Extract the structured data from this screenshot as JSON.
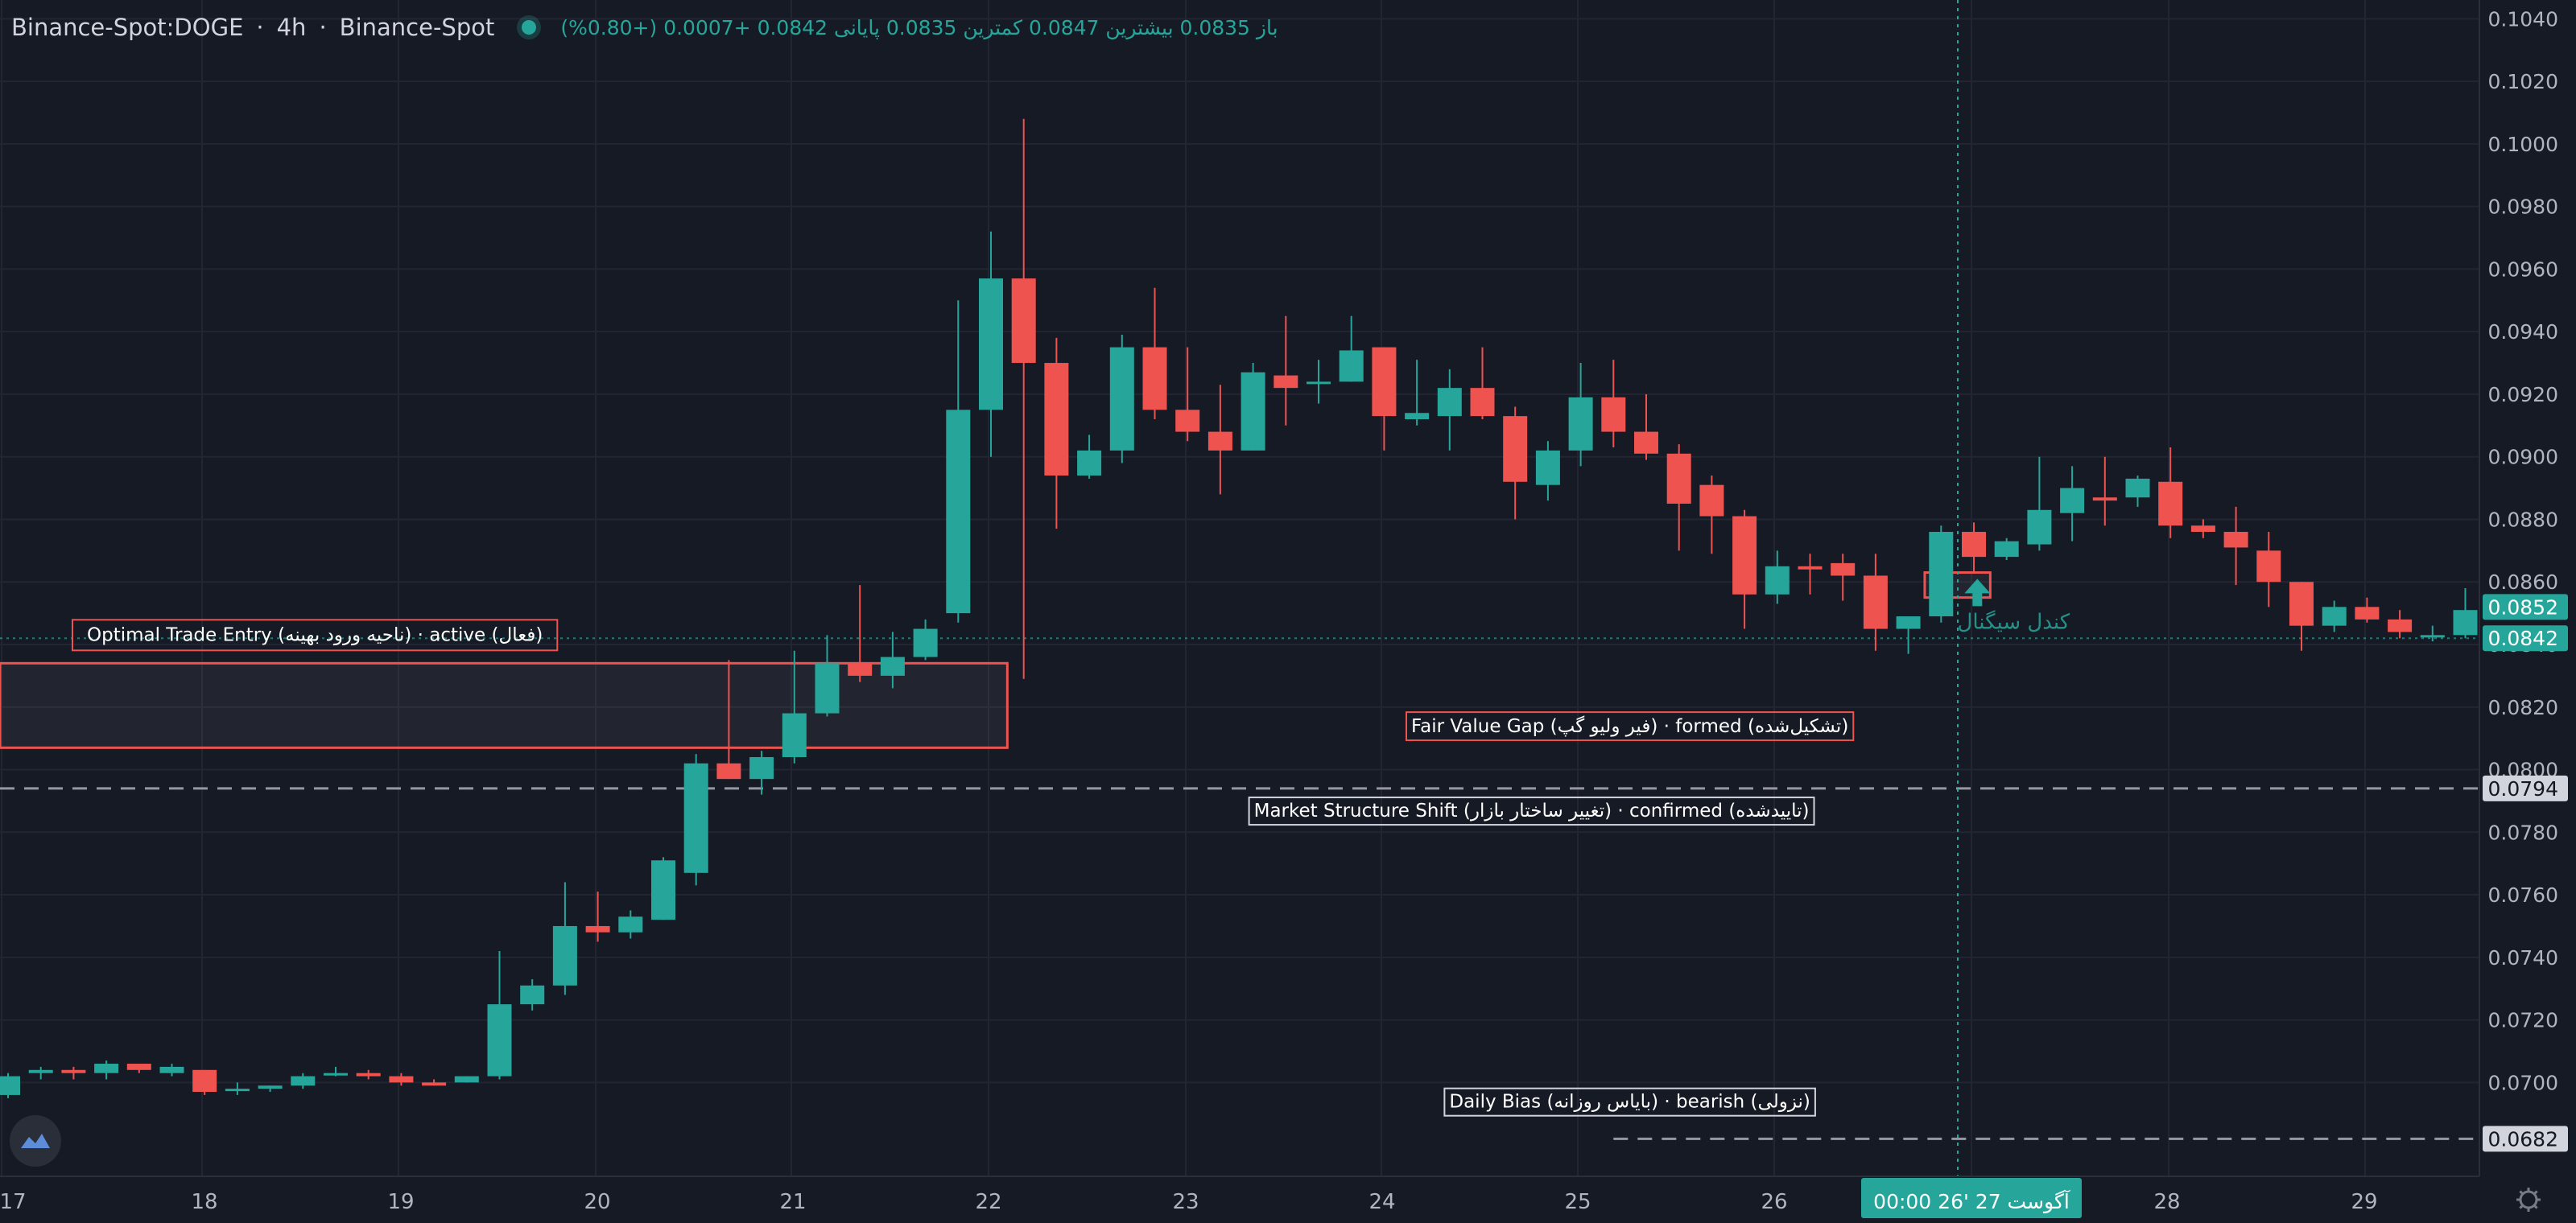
{
  "header": {
    "symbol": "Binance-Spot:DOGE",
    "interval": "4h",
    "exchange": "Binance-Spot",
    "ohlc_text": "باز 0.0835 بیشترین 0.0847 کمترین 0.0835 پایانی 0.0842 +0.0007 (+0.80%)"
  },
  "colors": {
    "background": "#161a25",
    "bull": "#26a69a",
    "bear": "#ef5350",
    "grid": "#232632",
    "text": "#b2b5be",
    "annotation_border": "#ef5350"
  },
  "chart_data": {
    "type": "candlestick",
    "yaxis": {
      "range": [
        0.067,
        0.1046
      ],
      "ticks": [
        "0.0700",
        "0.0720",
        "0.0740",
        "0.0760",
        "0.0780",
        "0.0800",
        "0.0820",
        "0.0840",
        "0.0860",
        "0.0880",
        "0.0900",
        "0.0920",
        "0.0940",
        "0.0960",
        "0.0980",
        "0.1000",
        "0.1020",
        "0.1040"
      ]
    },
    "xaxis": {
      "labels": [
        "17",
        "18",
        "19",
        "20",
        "21",
        "22",
        "23",
        "24",
        "25",
        "26",
        "28",
        "29"
      ],
      "crosshair_label": "00:00  26' آگوست 27"
    },
    "candles": [
      {
        "o": 0.0696,
        "h": 0.0703,
        "l": 0.0695,
        "c": 0.0702
      },
      {
        "o": 0.0703,
        "h": 0.0705,
        "l": 0.0701,
        "c": 0.0704
      },
      {
        "o": 0.0704,
        "h": 0.0705,
        "l": 0.0701,
        "c": 0.0703
      },
      {
        "o": 0.0703,
        "h": 0.0707,
        "l": 0.0701,
        "c": 0.0706
      },
      {
        "o": 0.0706,
        "h": 0.0706,
        "l": 0.0703,
        "c": 0.0704
      },
      {
        "o": 0.0703,
        "h": 0.0706,
        "l": 0.0702,
        "c": 0.0705
      },
      {
        "o": 0.0704,
        "h": 0.0704,
        "l": 0.0696,
        "c": 0.0697
      },
      {
        "o": 0.0698,
        "h": 0.07,
        "l": 0.0696,
        "c": 0.0698
      },
      {
        "o": 0.0698,
        "h": 0.0699,
        "l": 0.0697,
        "c": 0.0699
      },
      {
        "o": 0.0699,
        "h": 0.0703,
        "l": 0.0698,
        "c": 0.0702
      },
      {
        "o": 0.0703,
        "h": 0.0705,
        "l": 0.0702,
        "c": 0.0703
      },
      {
        "o": 0.0703,
        "h": 0.0704,
        "l": 0.0701,
        "c": 0.0702
      },
      {
        "o": 0.0702,
        "h": 0.0703,
        "l": 0.0699,
        "c": 0.07
      },
      {
        "o": 0.07,
        "h": 0.0701,
        "l": 0.0699,
        "c": 0.0699
      },
      {
        "o": 0.07,
        "h": 0.0702,
        "l": 0.07,
        "c": 0.0702
      },
      {
        "o": 0.0702,
        "h": 0.0742,
        "l": 0.0701,
        "c": 0.0725
      },
      {
        "o": 0.0725,
        "h": 0.0733,
        "l": 0.0723,
        "c": 0.0731
      },
      {
        "o": 0.0731,
        "h": 0.0764,
        "l": 0.0728,
        "c": 0.075
      },
      {
        "o": 0.075,
        "h": 0.0761,
        "l": 0.0745,
        "c": 0.0748
      },
      {
        "o": 0.0748,
        "h": 0.0755,
        "l": 0.0746,
        "c": 0.0753
      },
      {
        "o": 0.0752,
        "h": 0.0772,
        "l": 0.0752,
        "c": 0.0771
      },
      {
        "o": 0.0767,
        "h": 0.0805,
        "l": 0.0763,
        "c": 0.0802
      },
      {
        "o": 0.0802,
        "h": 0.0835,
        "l": 0.0797,
        "c": 0.0797
      },
      {
        "o": 0.0797,
        "h": 0.0806,
        "l": 0.0792,
        "c": 0.0804
      },
      {
        "o": 0.0804,
        "h": 0.0838,
        "l": 0.0802,
        "c": 0.0818
      },
      {
        "o": 0.0818,
        "h": 0.0843,
        "l": 0.0817,
        "c": 0.0834
      },
      {
        "o": 0.0834,
        "h": 0.0859,
        "l": 0.0828,
        "c": 0.083
      },
      {
        "o": 0.083,
        "h": 0.0844,
        "l": 0.0826,
        "c": 0.0836
      },
      {
        "o": 0.0836,
        "h": 0.0848,
        "l": 0.0835,
        "c": 0.0845
      },
      {
        "o": 0.085,
        "h": 0.095,
        "l": 0.0847,
        "c": 0.0915
      },
      {
        "o": 0.0915,
        "h": 0.0972,
        "l": 0.09,
        "c": 0.0957
      },
      {
        "o": 0.0957,
        "h": 0.1008,
        "l": 0.0829,
        "c": 0.093
      },
      {
        "o": 0.093,
        "h": 0.0938,
        "l": 0.0877,
        "c": 0.0894
      },
      {
        "o": 0.0894,
        "h": 0.0907,
        "l": 0.0893,
        "c": 0.0902
      },
      {
        "o": 0.0902,
        "h": 0.0939,
        "l": 0.0898,
        "c": 0.0935
      },
      {
        "o": 0.0935,
        "h": 0.0954,
        "l": 0.0912,
        "c": 0.0915
      },
      {
        "o": 0.0915,
        "h": 0.0935,
        "l": 0.0905,
        "c": 0.0908
      },
      {
        "o": 0.0908,
        "h": 0.0923,
        "l": 0.0888,
        "c": 0.0902
      },
      {
        "o": 0.0902,
        "h": 0.093,
        "l": 0.0902,
        "c": 0.0927
      },
      {
        "o": 0.0926,
        "h": 0.0945,
        "l": 0.091,
        "c": 0.0922
      },
      {
        "o": 0.0924,
        "h": 0.0931,
        "l": 0.0917,
        "c": 0.0924
      },
      {
        "o": 0.0924,
        "h": 0.0945,
        "l": 0.0924,
        "c": 0.0934
      },
      {
        "o": 0.0935,
        "h": 0.0935,
        "l": 0.0902,
        "c": 0.0913
      },
      {
        "o": 0.0912,
        "h": 0.0931,
        "l": 0.091,
        "c": 0.0914
      },
      {
        "o": 0.0913,
        "h": 0.0928,
        "l": 0.0902,
        "c": 0.0922
      },
      {
        "o": 0.0922,
        "h": 0.0935,
        "l": 0.0912,
        "c": 0.0913
      },
      {
        "o": 0.0913,
        "h": 0.0916,
        "l": 0.088,
        "c": 0.0892
      },
      {
        "o": 0.0891,
        "h": 0.0905,
        "l": 0.0886,
        "c": 0.0902
      },
      {
        "o": 0.0902,
        "h": 0.093,
        "l": 0.0897,
        "c": 0.0919
      },
      {
        "o": 0.0919,
        "h": 0.0931,
        "l": 0.0903,
        "c": 0.0908
      },
      {
        "o": 0.0908,
        "h": 0.092,
        "l": 0.0899,
        "c": 0.0901
      },
      {
        "o": 0.0901,
        "h": 0.0904,
        "l": 0.087,
        "c": 0.0885
      },
      {
        "o": 0.0891,
        "h": 0.0894,
        "l": 0.0869,
        "c": 0.0881
      },
      {
        "o": 0.0881,
        "h": 0.0883,
        "l": 0.0845,
        "c": 0.0856
      },
      {
        "o": 0.0856,
        "h": 0.087,
        "l": 0.0853,
        "c": 0.0865
      },
      {
        "o": 0.0865,
        "h": 0.0869,
        "l": 0.0856,
        "c": 0.0864
      },
      {
        "o": 0.0866,
        "h": 0.0869,
        "l": 0.0854,
        "c": 0.0862
      },
      {
        "o": 0.0862,
        "h": 0.0869,
        "l": 0.0838,
        "c": 0.0845
      },
      {
        "o": 0.0845,
        "h": 0.0847,
        "l": 0.0837,
        "c": 0.0849
      },
      {
        "o": 0.0849,
        "h": 0.0878,
        "l": 0.0847,
        "c": 0.0876
      },
      {
        "o": 0.0876,
        "h": 0.0879,
        "l": 0.0863,
        "c": 0.0868
      },
      {
        "o": 0.0868,
        "h": 0.0874,
        "l": 0.0867,
        "c": 0.0873
      },
      {
        "o": 0.0872,
        "h": 0.09,
        "l": 0.087,
        "c": 0.0883
      },
      {
        "o": 0.0882,
        "h": 0.0897,
        "l": 0.0873,
        "c": 0.089
      },
      {
        "o": 0.0887,
        "h": 0.09,
        "l": 0.0878,
        "c": 0.0886
      },
      {
        "o": 0.0887,
        "h": 0.0894,
        "l": 0.0884,
        "c": 0.0893
      },
      {
        "o": 0.0892,
        "h": 0.0903,
        "l": 0.0874,
        "c": 0.0878
      },
      {
        "o": 0.0878,
        "h": 0.088,
        "l": 0.0874,
        "c": 0.0876
      },
      {
        "o": 0.0876,
        "h": 0.0884,
        "l": 0.0859,
        "c": 0.0871
      },
      {
        "o": 0.087,
        "h": 0.0876,
        "l": 0.0852,
        "c": 0.086
      },
      {
        "o": 0.086,
        "h": 0.086,
        "l": 0.0838,
        "c": 0.0846
      },
      {
        "o": 0.0846,
        "h": 0.0854,
        "l": 0.0844,
        "c": 0.0852
      },
      {
        "o": 0.0852,
        "h": 0.0855,
        "l": 0.0847,
        "c": 0.0848
      },
      {
        "o": 0.0848,
        "h": 0.0851,
        "l": 0.0842,
        "c": 0.0844
      },
      {
        "o": 0.0843,
        "h": 0.0846,
        "l": 0.0841,
        "c": 0.0843
      },
      {
        "o": 0.0843,
        "h": 0.0858,
        "l": 0.0842,
        "c": 0.0851
      }
    ],
    "price_tags": [
      {
        "value": 0.0852,
        "label": "0.0852",
        "style": "bull"
      },
      {
        "value": 0.0842,
        "label": "0.0842",
        "style": "bull"
      },
      {
        "value": 0.0794,
        "label": "0.0794",
        "style": "neutral"
      },
      {
        "value": 0.0682,
        "label": "0.0682",
        "style": "neutral"
      }
    ],
    "levels": [
      {
        "value": 0.0794,
        "style": "dashed"
      },
      {
        "value": 0.0682,
        "style": "dashed",
        "from_candle": 49
      },
      {
        "value": 0.0842,
        "style": "dotted"
      }
    ],
    "zones": [
      {
        "label": "Optimal Trade Entry (ناحیه ورود بهینه) · active (فعال)",
        "y_top": 0.0834,
        "y_bottom": 0.0807,
        "x_from": 0.0,
        "x_to": 30.5
      },
      {
        "label": "",
        "y_top": 0.0863,
        "y_bottom": 0.0855,
        "x_from": 58.5,
        "x_to": 60.5
      }
    ],
    "annotations": [
      {
        "text": "Fair Value Gap (فیر ولیو گپ) · formed (تشکیل‌شده)",
        "y": 0.0814,
        "x_candle": 49.5
      },
      {
        "text": "Market Structure Shift (تغییر ساختار بازار) · confirmed (تاییدشده)",
        "y": 0.0787,
        "x_candle": 46.5
      },
      {
        "text": "Daily Bias (بایاس روزانه) · bearish (نزولی)",
        "y": 0.0694,
        "x_candle": 49.5
      }
    ],
    "signal": {
      "text": "کندل سیگنال",
      "candle": 59,
      "y": 0.0843
    },
    "crosshair_candle": 60
  }
}
